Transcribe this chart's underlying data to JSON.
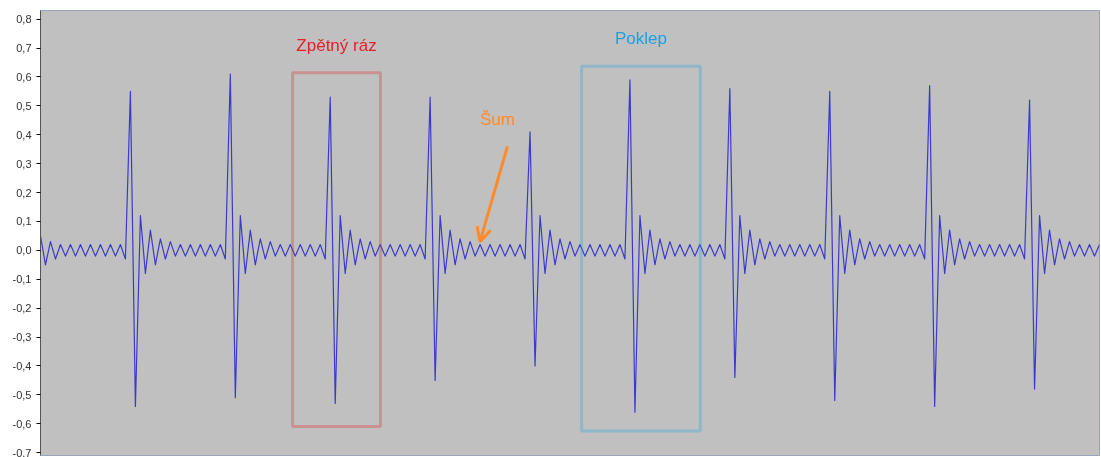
{
  "chart_data": {
    "type": "line",
    "tick_labels": "y",
    "categories": [
      null,
      null,
      null,
      null,
      null,
      null,
      null,
      null,
      null,
      null,
      null,
      null,
      null,
      null,
      null,
      null,
      null,
      null,
      null,
      null,
      null,
      null,
      null,
      null,
      null,
      null,
      null,
      null,
      null,
      null,
      null,
      null,
      null,
      null,
      null,
      null,
      null,
      null,
      null,
      null,
      null,
      null,
      null,
      null,
      null,
      null,
      null,
      null,
      null,
      null,
      null,
      null,
      null,
      null,
      null,
      null,
      null,
      null,
      null,
      null,
      null,
      null,
      null,
      null,
      null,
      null,
      null,
      null,
      null,
      null,
      null,
      null,
      null,
      null,
      null,
      null,
      null,
      null,
      null,
      null,
      null,
      null,
      null,
      null,
      null,
      null,
      null,
      null,
      null,
      null,
      null,
      null,
      null,
      null,
      null,
      null,
      null,
      null,
      null,
      null,
      null,
      null,
      null,
      null,
      null,
      null,
      null,
      null,
      null,
      null,
      null,
      null,
      null,
      null,
      null,
      null,
      null,
      null,
      null,
      null,
      null,
      null,
      null,
      null,
      null,
      null,
      null,
      null,
      null,
      null,
      null,
      null,
      null,
      null,
      null,
      null,
      null,
      null,
      null,
      null,
      null,
      null,
      null,
      null,
      null,
      null,
      null,
      null,
      null,
      null,
      null,
      null,
      null,
      null,
      null,
      null,
      null,
      null,
      null,
      null,
      null,
      null,
      null,
      null,
      null,
      null,
      null,
      null,
      null,
      null,
      null,
      null,
      null,
      null,
      null,
      null,
      null,
      null,
      null,
      null,
      null,
      null,
      null,
      null,
      null,
      null,
      null,
      null,
      null,
      null,
      null,
      null,
      null,
      null,
      null,
      null,
      null,
      null,
      null,
      null,
      null,
      null,
      null,
      null,
      null,
      null,
      null,
      null,
      null,
      null,
      null,
      null,
      null
    ],
    "ylim": [
      -0.71,
      0.83
    ],
    "yticks": [
      {
        "value": 0.8,
        "label": "0,8"
      },
      {
        "value": 0.7,
        "label": "0,7"
      },
      {
        "value": 0.6,
        "label": "0,6"
      },
      {
        "value": 0.5,
        "label": "0,5"
      },
      {
        "value": 0.4,
        "label": "0,4"
      },
      {
        "value": 0.3,
        "label": "0,3"
      },
      {
        "value": 0.2,
        "label": "0,2"
      },
      {
        "value": 0.1,
        "label": "0,1"
      },
      {
        "value": 0.0,
        "label": "0,0"
      },
      {
        "value": -0.1,
        "label": "-0,1"
      },
      {
        "value": -0.2,
        "label": "-0,2"
      },
      {
        "value": -0.3,
        "label": "-0,3"
      },
      {
        "value": -0.4,
        "label": "-0,4"
      },
      {
        "value": -0.5,
        "label": "-0,5"
      },
      {
        "value": -0.6,
        "label": "-0,6"
      },
      {
        "value": -0.7,
        "label": "-0,7"
      }
    ],
    "series": [
      {
        "color": "#3a3acd",
        "values": [
          0.05,
          -0.05,
          0.03,
          -0.03,
          0.02,
          -0.02,
          0.02,
          -0.02,
          0.02,
          -0.02,
          0.02,
          -0.02,
          0.02,
          -0.02,
          0.02,
          -0.02,
          0.02,
          -0.03,
          0.55,
          -0.54,
          0.12,
          -0.08,
          0.07,
          -0.05,
          0.04,
          -0.03,
          0.03,
          -0.02,
          0.02,
          -0.02,
          0.02,
          -0.02,
          0.02,
          -0.02,
          0.02,
          -0.02,
          0.02,
          -0.03,
          0.61,
          -0.51,
          0.12,
          -0.08,
          0.07,
          -0.05,
          0.04,
          -0.03,
          0.03,
          -0.02,
          0.02,
          -0.02,
          0.02,
          -0.02,
          0.02,
          -0.02,
          0.02,
          -0.02,
          0.02,
          -0.03,
          0.53,
          -0.53,
          0.12,
          -0.08,
          0.07,
          -0.05,
          0.04,
          -0.03,
          0.03,
          -0.02,
          0.02,
          -0.02,
          0.02,
          -0.02,
          0.02,
          -0.02,
          0.02,
          -0.02,
          0.02,
          -0.03,
          0.53,
          -0.45,
          0.12,
          -0.08,
          0.07,
          -0.05,
          0.04,
          -0.03,
          0.03,
          -0.02,
          0.02,
          -0.02,
          0.02,
          -0.02,
          0.02,
          -0.02,
          0.02,
          -0.02,
          0.02,
          -0.03,
          0.41,
          -0.4,
          0.12,
          -0.08,
          0.07,
          -0.05,
          0.04,
          -0.03,
          0.03,
          -0.02,
          0.02,
          -0.02,
          0.02,
          -0.02,
          0.02,
          -0.02,
          0.02,
          -0.02,
          0.02,
          -0.03,
          0.59,
          -0.56,
          0.12,
          -0.08,
          0.07,
          -0.05,
          0.04,
          -0.03,
          0.03,
          -0.02,
          0.02,
          -0.02,
          0.02,
          -0.02,
          0.02,
          -0.02,
          0.02,
          -0.02,
          0.02,
          -0.03,
          0.56,
          -0.44,
          0.12,
          -0.08,
          0.07,
          -0.05,
          0.04,
          -0.03,
          0.03,
          -0.02,
          0.02,
          -0.02,
          0.02,
          -0.02,
          0.02,
          -0.02,
          0.02,
          -0.02,
          0.02,
          -0.03,
          0.55,
          -0.52,
          0.12,
          -0.08,
          0.07,
          -0.05,
          0.04,
          -0.03,
          0.03,
          -0.02,
          0.02,
          -0.02,
          0.02,
          -0.02,
          0.02,
          -0.02,
          0.02,
          -0.02,
          0.02,
          -0.03,
          0.57,
          -0.54,
          0.12,
          -0.08,
          0.07,
          -0.05,
          0.04,
          -0.03,
          0.03,
          -0.02,
          0.02,
          -0.02,
          0.02,
          -0.02,
          0.02,
          -0.02,
          0.02,
          -0.02,
          0.02,
          -0.03,
          0.52,
          -0.48,
          0.12,
          -0.08,
          0.07,
          -0.05,
          0.04,
          -0.03,
          0.03,
          -0.02,
          0.02,
          -0.02,
          0.02,
          -0.02,
          0.02
        ]
      }
    ],
    "annotations": [
      "Zpětný ráz",
      "Šum",
      "Poklep"
    ]
  }
}
